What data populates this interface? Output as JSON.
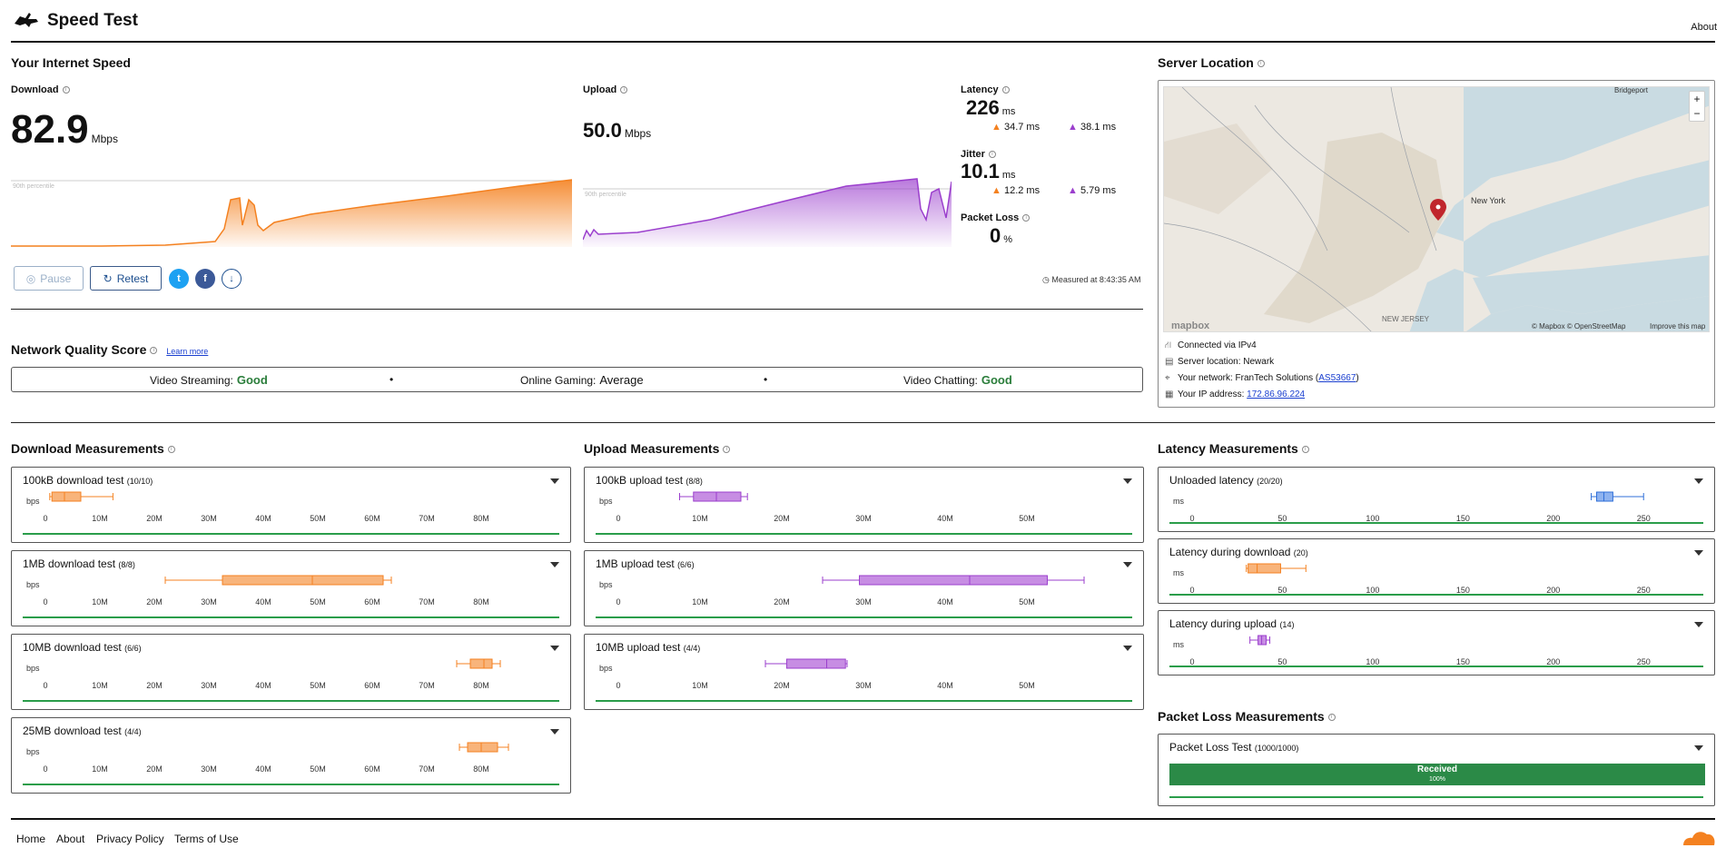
{
  "header": {
    "title": "Speed Test",
    "about_label": "About"
  },
  "speed": {
    "section_title": "Your Internet Speed",
    "download": {
      "label": "Download",
      "value": "82.9",
      "unit": "Mbps",
      "percentile_label": "90th percentile"
    },
    "upload": {
      "label": "Upload",
      "value": "50.0",
      "unit": "Mbps",
      "percentile_label": "90th percentile"
    },
    "latency": {
      "label": "Latency",
      "value": "226",
      "unit": "ms",
      "down": "34.7 ms",
      "up": "38.1 ms"
    },
    "jitter": {
      "label": "Jitter",
      "value": "10.1",
      "unit": "ms",
      "down": "12.2 ms",
      "up": "5.79 ms"
    },
    "packet_loss": {
      "label": "Packet Loss",
      "value": "0",
      "unit": "%"
    },
    "pause_label": "Pause",
    "retest_label": "Retest",
    "measured_at": "Measured at 8:43:35 AM"
  },
  "quality": {
    "title": "Network Quality Score",
    "learn_more": "Learn more",
    "items": [
      {
        "label": "Video Streaming:",
        "value": "Good"
      },
      {
        "label": "Online Gaming:",
        "value": "Average"
      },
      {
        "label": "Video Chatting:",
        "value": "Good"
      }
    ]
  },
  "server": {
    "title": "Server Location",
    "map_labels": {
      "bridgeport": "Bridgeport",
      "new_york": "New York",
      "new_jersey": "NEW\nJERSEY",
      "mapbox": "mapbox",
      "attribution": "© Mapbox © OpenStreetMap",
      "improve": "Improve this map"
    },
    "connected": "Connected via IPv4",
    "location": "Server location: Newark",
    "network_prefix": "Your network: FranTech Solutions (",
    "network_as": "AS53667",
    "network_suffix": ")",
    "ip_prefix": "Your IP address: ",
    "ip": "172.86.96.224"
  },
  "download_measurements": {
    "title": "Download Measurements",
    "axis_unit": "bps",
    "ticks": [
      "0",
      "10M",
      "20M",
      "30M",
      "40M",
      "50M",
      "60M",
      "70M",
      "80M"
    ],
    "tests": [
      {
        "name": "100kB download test",
        "count": "(10/10)",
        "min": 0.8,
        "q1": 1.2,
        "median": 3.5,
        "q3": 6.5,
        "max": 12.4
      },
      {
        "name": "1MB download test",
        "count": "(8/8)",
        "min": 22,
        "q1": 32.5,
        "median": 49,
        "q3": 62,
        "max": 63.5
      },
      {
        "name": "10MB download test",
        "count": "(6/6)",
        "min": 75.5,
        "q1": 78,
        "median": 80.5,
        "q3": 82,
        "max": 83.5
      },
      {
        "name": "25MB download test",
        "count": "(4/4)",
        "min": 76,
        "q1": 77.5,
        "median": 80,
        "q3": 83,
        "max": 85
      }
    ]
  },
  "upload_measurements": {
    "title": "Upload Measurements",
    "axis_unit": "bps",
    "ticks": [
      "0",
      "10M",
      "20M",
      "30M",
      "40M",
      "50M"
    ],
    "tests": [
      {
        "name": "100kB upload test",
        "count": "(8/8)",
        "min": 7.5,
        "q1": 9.2,
        "median": 12,
        "q3": 15,
        "max": 15.8
      },
      {
        "name": "1MB upload test",
        "count": "(6/6)",
        "min": 25,
        "q1": 29.5,
        "median": 43,
        "q3": 52.5,
        "max": 57
      },
      {
        "name": "10MB upload test",
        "count": "(4/4)",
        "min": 18,
        "q1": 20.6,
        "median": 25.5,
        "q3": 27.8,
        "max": 28
      }
    ]
  },
  "latency_measurements": {
    "title": "Latency Measurements",
    "axis_unit": "ms",
    "ticks": [
      "0",
      "50",
      "100",
      "150",
      "200",
      "250"
    ],
    "tests": [
      {
        "name": "Unloaded latency",
        "count": "(20/20)",
        "min": 221,
        "q1": 224,
        "median": 228,
        "q3": 233,
        "max": 250
      },
      {
        "name": "Latency during download",
        "count": "(20)",
        "min": 30,
        "q1": 31,
        "median": 36,
        "q3": 49,
        "max": 63
      },
      {
        "name": "Latency during upload",
        "count": "(14)",
        "min": 32,
        "q1": 36.5,
        "median": 38.5,
        "q3": 41,
        "max": 43
      }
    ]
  },
  "packet_loss_measurements": {
    "title": "Packet Loss Measurements",
    "test_name": "Packet Loss Test",
    "count": "(1000/1000)",
    "received_label": "Received",
    "received_pct": "100%",
    "received_fraction": 1.0
  },
  "footer": {
    "home": "Home",
    "about": "About",
    "privacy": "Privacy Policy",
    "terms": "Terms of Use"
  },
  "colors": {
    "download": "#f48120",
    "upload": "#9b3fcd",
    "latency_unloaded": "#2f6fd8",
    "good": "#2a7d3a",
    "received": "#2b8a47"
  }
}
